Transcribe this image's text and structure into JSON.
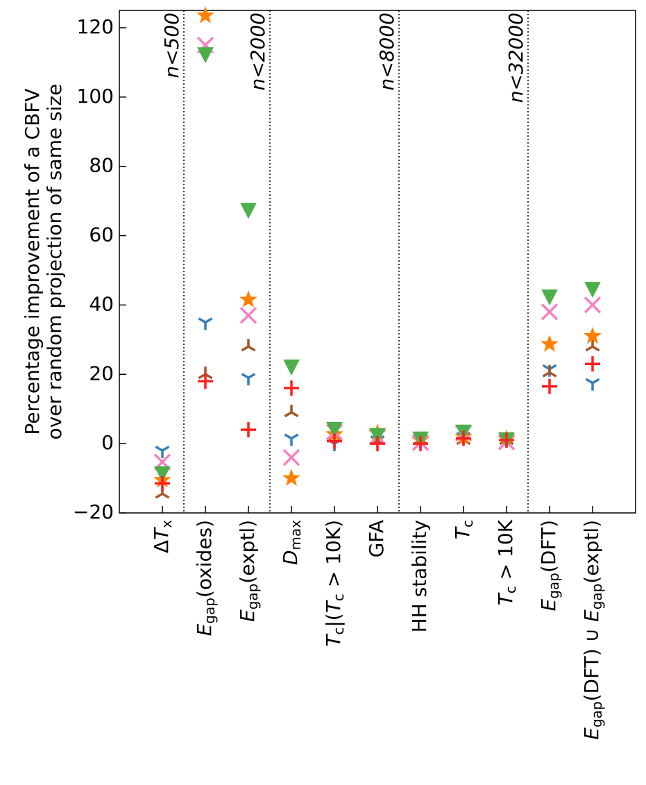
{
  "chart_data": {
    "type": "scatter",
    "ylabel": [
      "Percentage improvement of a CBFV",
      "over random projection of same size"
    ],
    "categories": [
      [
        {
          "text": "Δ"
        },
        {
          "text": "T",
          "style": "italic"
        },
        {
          "text": "x",
          "style": "sub"
        }
      ],
      [
        {
          "text": "E",
          "style": "italic"
        },
        {
          "text": "gap",
          "style": "sub"
        },
        {
          "text": "(oxides)"
        }
      ],
      [
        {
          "text": "E",
          "style": "italic"
        },
        {
          "text": "gap",
          "style": "sub"
        },
        {
          "text": "(exptl)"
        }
      ],
      [
        {
          "text": "D",
          "style": "italic"
        },
        {
          "text": "max",
          "style": "sub"
        }
      ],
      [
        {
          "text": "T",
          "style": "italic"
        },
        {
          "text": "c",
          "style": "sub"
        },
        {
          "text": "|("
        },
        {
          "text": "T",
          "style": "italic"
        },
        {
          "text": "c",
          "style": "sub"
        },
        {
          "text": " > 10K)"
        }
      ],
      [
        {
          "text": "GFA"
        }
      ],
      [
        {
          "text": "HH stability"
        }
      ],
      [
        {
          "text": "T",
          "style": "italic"
        },
        {
          "text": "c",
          "style": "sub"
        }
      ],
      [
        {
          "text": "T",
          "style": "italic"
        },
        {
          "text": "c",
          "style": "sub"
        },
        {
          "text": " > 10K"
        }
      ],
      [
        {
          "text": "E",
          "style": "italic"
        },
        {
          "text": "gap",
          "style": "sub"
        },
        {
          "text": "(DFT)"
        }
      ],
      [
        {
          "text": "E",
          "style": "italic"
        },
        {
          "text": "gap",
          "style": "sub"
        },
        {
          "text": "(DFT) ∪ "
        },
        {
          "text": "E",
          "style": "italic"
        },
        {
          "text": "gap",
          "style": "sub"
        },
        {
          "text": "(exptl)"
        }
      ]
    ],
    "dividers": [
      0.5,
      2.5,
      5.5,
      8.5
    ],
    "annotations": [
      "n<500",
      "n<2000",
      "n<8000",
      "n<32000"
    ],
    "xlim": [
      -1,
      11
    ],
    "ylim": [
      -20,
      125
    ],
    "yticks": [
      {
        "value": -20,
        "label": "−20"
      },
      0,
      20,
      40,
      60,
      80,
      100,
      120
    ],
    "series": [
      {
        "marker": "tri_down",
        "color": "#377eb8",
        "values": [
          -2,
          35,
          19,
          1.5,
          0,
          1,
          1,
          2,
          1,
          21.5,
          17.5
        ]
      },
      {
        "marker": "tri_up",
        "color": "#a65628",
        "values": [
          -14.5,
          20,
          28,
          9,
          2,
          1,
          1,
          1,
          1,
          20.5,
          28
        ]
      },
      {
        "marker": "star",
        "color": "#ff7f00",
        "values": [
          -10.5,
          123.5,
          41.5,
          -10,
          2.7,
          3,
          1,
          2,
          1.3,
          28.7,
          31
        ]
      },
      {
        "marker": "x",
        "color": "#f781bf",
        "values": [
          -5.3,
          115,
          37,
          -4,
          3.3,
          2,
          0.3,
          3,
          0.5,
          38,
          40
        ]
      },
      {
        "marker": "triangle_down",
        "color": "#4daf4a",
        "values": [
          -8.5,
          112.4,
          67.5,
          22.3,
          4.3,
          2.5,
          1.5,
          3.5,
          1.3,
          42.5,
          44.7
        ]
      },
      {
        "marker": "plus",
        "color": "#ff2020",
        "values": [
          -11.5,
          18,
          4,
          16,
          0.7,
          0,
          0,
          1.5,
          1,
          16.5,
          23
        ]
      }
    ]
  }
}
